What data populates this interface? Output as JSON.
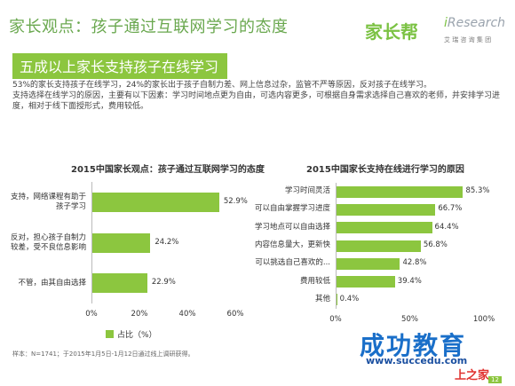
{
  "header": {
    "title": "家长观点：孩子通过互联网学习的态度",
    "subtitle": "五成以上家长支持孩子在线学习",
    "logo_jiazhangbang": "家长帮",
    "logo_iresearch_i": "i",
    "logo_iresearch": "Research",
    "logo_iresearch_sub": "艾 瑞 咨 询 集 团"
  },
  "summary": {
    "line1": "53%的家长支持孩子在线学习，24%的家长出于孩子自制力差、网上信息过杂，监管不严等原因，反对孩子在线学习。",
    "line2": "支持选择在线学习的原因，主要有以下因素：学习时间地点更为自由，可选内容更多，可根据自身需求选择自己喜欢的老师，并安排学习进度，相对于线下面授形式，费用较低。"
  },
  "footer": {
    "source": "样本：N=1741；于2015年1月5日-1月12日通过线上调研获得。",
    "watermark_cn": "成功教育",
    "watermark_url": "www.succedu.com",
    "watermark_brand": "上之家",
    "page": "12"
  },
  "colors": {
    "accent": "#8cc63f",
    "title": "#6aa84f"
  },
  "chart_data": [
    {
      "type": "bar",
      "orientation": "horizontal",
      "title": "2015中国家长观点：孩子通过互联网学习的态度",
      "categories": [
        "支持，网络课程有助于孩子学习",
        "反对，担心孩子自制力较差，受不良信息影响",
        "不管，由其自由选择"
      ],
      "category_lines": [
        [
          "支持，网络课程有助于",
          "孩子学习"
        ],
        [
          "反对，担心孩子自制力",
          "较差，受不良信息影响"
        ],
        [
          "不管，由其自由选择"
        ]
      ],
      "values": [
        52.9,
        24.2,
        22.9
      ],
      "labels": [
        "52.9%",
        "24.2%",
        "22.9%"
      ],
      "xlim": [
        0,
        60
      ],
      "xticks": [
        "0%",
        "20%",
        "40%",
        "60%"
      ],
      "legend": "占比（%）",
      "grid": false
    },
    {
      "type": "bar",
      "orientation": "horizontal",
      "title": "2015中国家长支持在线进行学习的原因",
      "categories": [
        "学习时间灵活",
        "可以自由掌握学习进度",
        "学习地点可以自由选择",
        "内容信息量大，更新快",
        "可以挑选自己喜欢的...",
        "费用较低",
        "其他"
      ],
      "values": [
        85.3,
        66.7,
        64.4,
        56.8,
        42.8,
        39.4,
        0.4
      ],
      "labels": [
        "85.3%",
        "66.7%",
        "64.4%",
        "56.8%",
        "42.8%",
        "39.4%",
        "0.4%"
      ],
      "xlim": [
        0,
        100
      ],
      "xticks": [
        "0%",
        "50%",
        "100%"
      ],
      "grid": false
    }
  ]
}
